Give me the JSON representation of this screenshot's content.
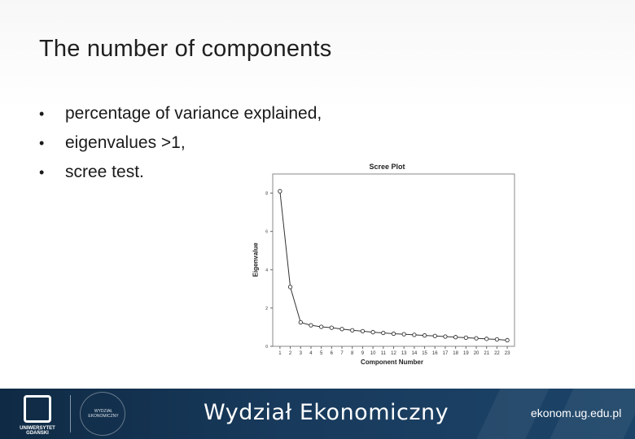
{
  "slide": {
    "title": "The number of components",
    "bullets": [
      "percentage of variance explained,",
      "eigenvalues >1,",
      "scree test."
    ]
  },
  "footer": {
    "faculty": "Wydział Ekonomiczny",
    "website": "ekonom.ug.edu.pl",
    "university_label": "UNIWERSYTET GDAŃSKI",
    "seal_text": "WYDZIAŁ EKONOMICZNY"
  },
  "chart_data": {
    "type": "line",
    "title": "Scree Plot",
    "xlabel": "Component Number",
    "ylabel": "Eigenvalue",
    "x": [
      1,
      2,
      3,
      4,
      5,
      6,
      7,
      8,
      9,
      10,
      11,
      12,
      13,
      14,
      15,
      16,
      17,
      18,
      19,
      20,
      21,
      22,
      23
    ],
    "values": [
      8.1,
      3.1,
      1.25,
      1.1,
      1.02,
      0.97,
      0.9,
      0.84,
      0.79,
      0.74,
      0.7,
      0.66,
      0.63,
      0.6,
      0.57,
      0.54,
      0.51,
      0.48,
      0.45,
      0.42,
      0.39,
      0.36,
      0.32
    ],
    "yticks": [
      "0",
      "2",
      "4",
      "6",
      "8"
    ],
    "ylim": [
      0,
      9
    ],
    "grid": false
  }
}
